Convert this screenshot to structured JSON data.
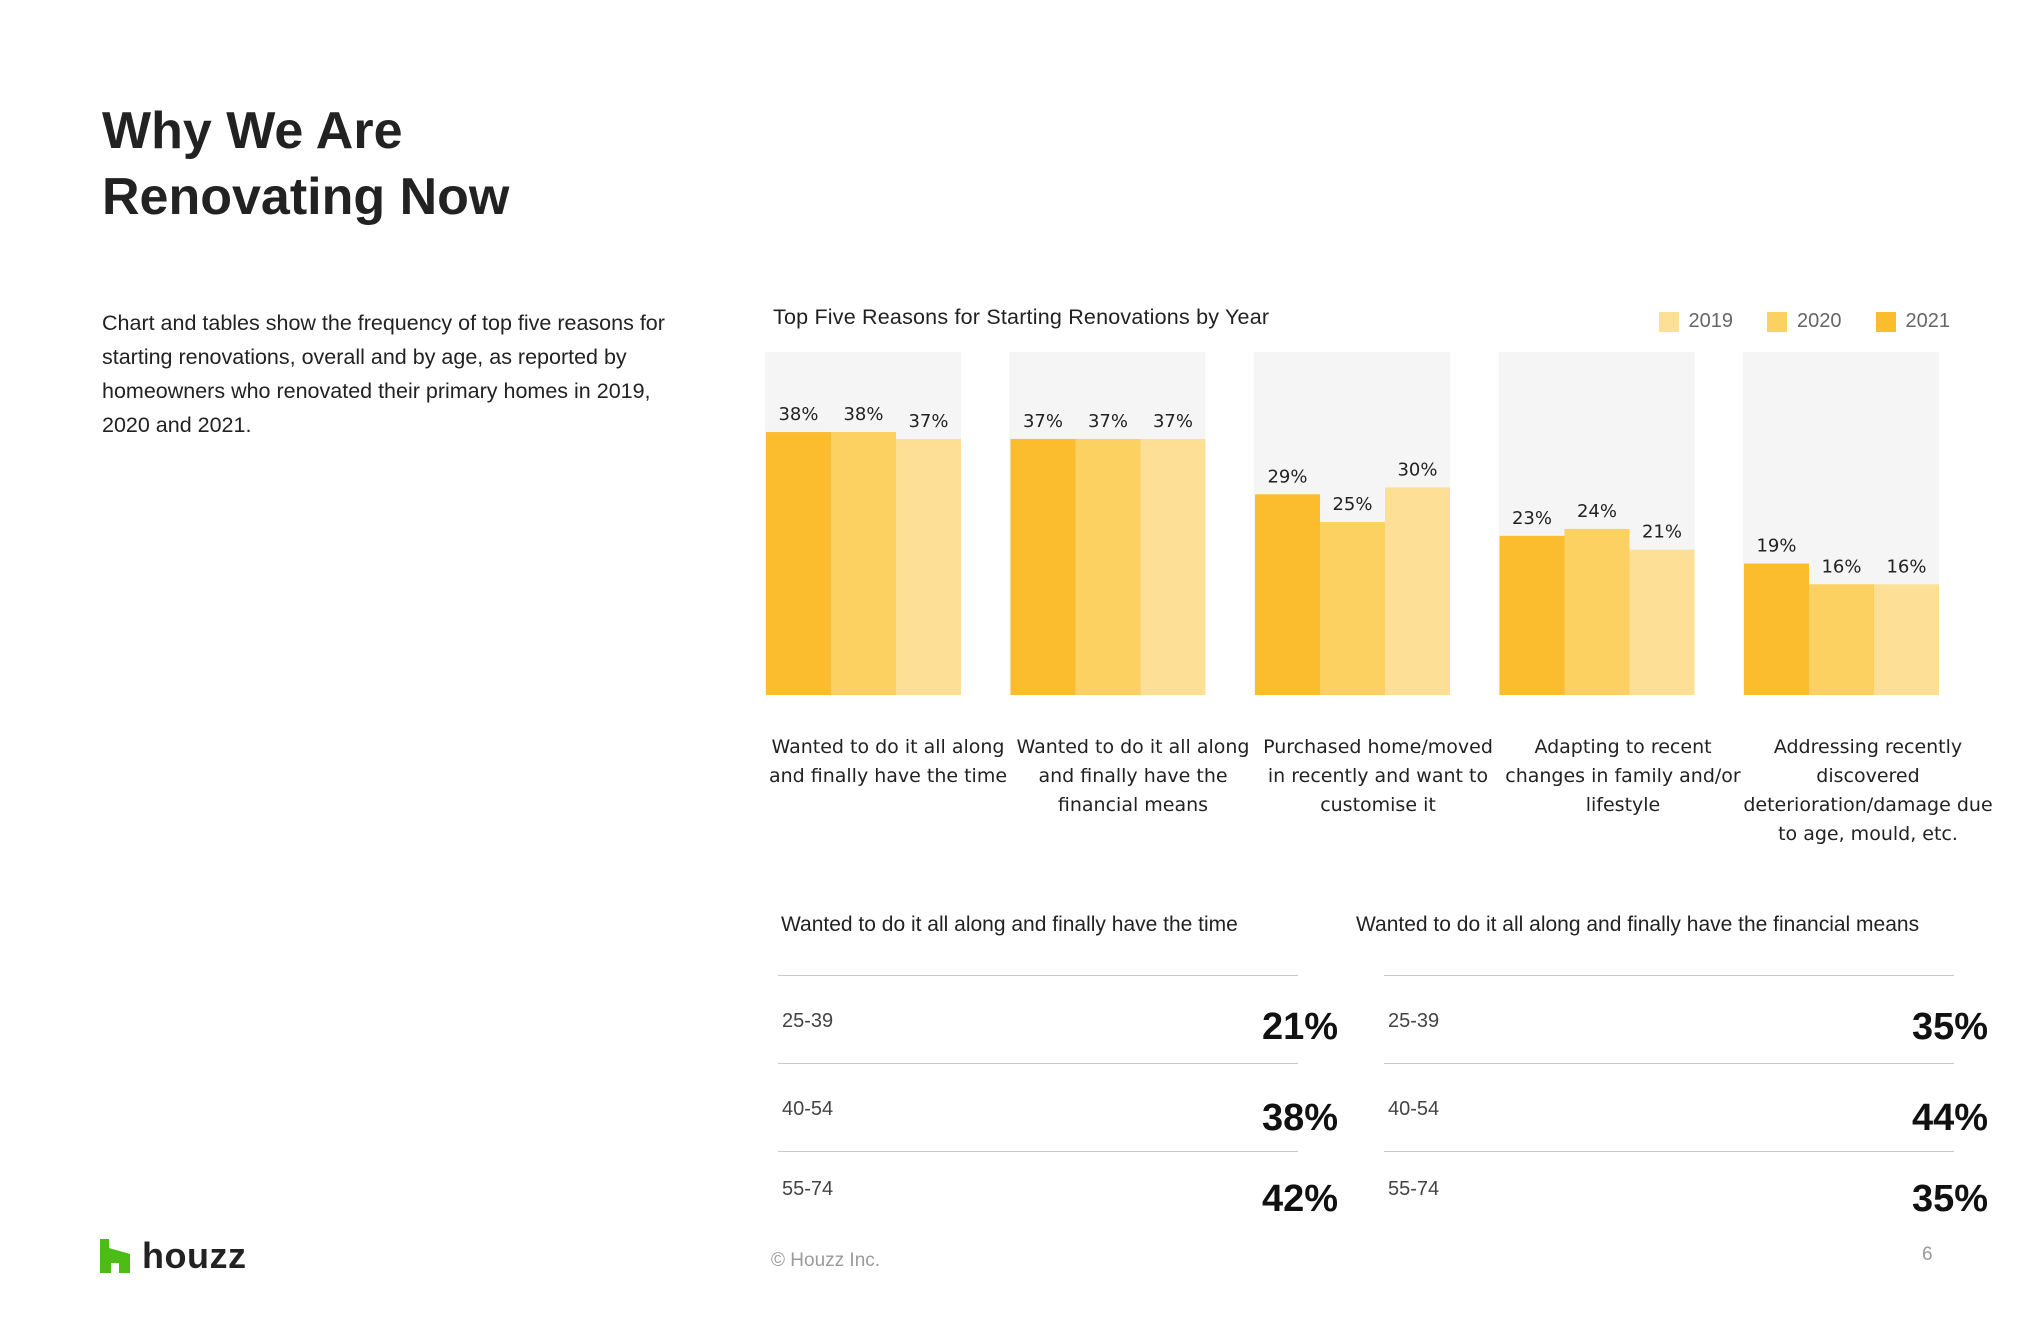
{
  "header": {
    "title_line1": "Why We Are",
    "title_line2": "Renovating Now"
  },
  "intro_text": "Chart and tables show the frequency of top five reasons for starting renovations, overall and by age, as reported by homeowners who renovated their primary homes in 2019, 2020 and 2021.",
  "colors": {
    "y2021": "#FBBC2E",
    "y2020": "#FCD061",
    "y2019": "#FDE096",
    "panel_bg": "#F5F5F5",
    "brand_green": "#4DBC15"
  },
  "chart_data": {
    "type": "bar",
    "title": "Top Five Reasons for Starting Renovations by Year",
    "legend": [
      "2019",
      "2020",
      "2021"
    ],
    "legend_position": "top-right",
    "categories": [
      "Wanted to do it all along and finally have the time",
      "Wanted to do it all along and finally have the financial means",
      "Purchased home/moved in recently and want to customise it",
      "Adapting to recent changes in family and/or lifestyle",
      "Addressing recently discovered deterioration/damage due to age, mould, etc."
    ],
    "series": [
      {
        "name": "2021",
        "values": [
          38,
          37,
          29,
          23,
          19
        ]
      },
      {
        "name": "2020",
        "values": [
          38,
          37,
          25,
          24,
          16
        ]
      },
      {
        "name": "2019",
        "values": [
          37,
          37,
          30,
          21,
          16
        ]
      }
    ],
    "ylim": [
      0,
      50
    ],
    "grid": false
  },
  "category_labels": [
    "Wanted to do it all along and finally have the time",
    "Wanted to do it all along and finally have the financial means",
    "Purchased home/moved in recently and want to customise it",
    "Adapting to recent changes in family and/or lifestyle",
    "Addressing recently discovered deterioration/damage due to age, mould, etc."
  ],
  "tables": [
    {
      "title": "Wanted to do it all along and finally have the time",
      "rows": [
        {
          "age": "25-39",
          "value": "21%"
        },
        {
          "age": "40-54",
          "value": "38%"
        },
        {
          "age": "55-74",
          "value": "42%"
        }
      ]
    },
    {
      "title": "Wanted to do it all along and finally have the financial means",
      "rows": [
        {
          "age": "25-39",
          "value": "35%"
        },
        {
          "age": "40-54",
          "value": "44%"
        },
        {
          "age": "55-74",
          "value": "35%"
        }
      ]
    }
  ],
  "footer": {
    "logo_text": "houzz",
    "copyright": "© Houzz Inc.",
    "page_number": "6"
  }
}
